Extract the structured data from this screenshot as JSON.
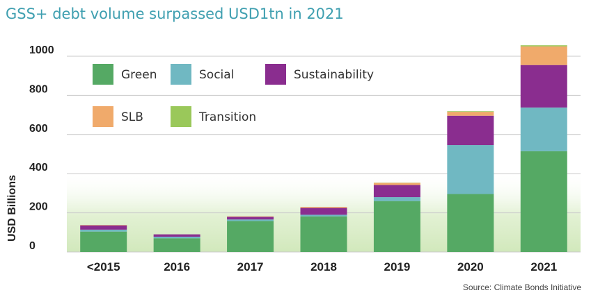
{
  "colors": {
    "title": "#3f9fb0",
    "Green": "#55a964",
    "Social": "#70b8c2",
    "Sustainability": "#8a2d8f",
    "SLB": "#f0aa6b",
    "Transition": "#9ac85a",
    "grid": "#c9c9c9",
    "band": "#d8ecc4"
  },
  "chart_data": {
    "type": "bar",
    "stacked": true,
    "title": "GSS+ debt volume surpassed USD1tn in 2021",
    "xlabel": "",
    "ylabel": "USD Billions",
    "ylim": [
      0,
      1000
    ],
    "yticks": [
      "1000",
      "800",
      "600",
      "400",
      "200",
      "0"
    ],
    "categories": [
      "<2015",
      "2016",
      "2017",
      "2018",
      "2019",
      "2020",
      "2021"
    ],
    "series": [
      {
        "name": "Green",
        "values": [
          104,
          70,
          158,
          182,
          260,
          296,
          515
        ]
      },
      {
        "name": "Social",
        "values": [
          10,
          8,
          8,
          8,
          20,
          250,
          223
        ]
      },
      {
        "name": "Sustainability",
        "values": [
          22,
          12,
          14,
          35,
          62,
          150,
          217
        ]
      },
      {
        "name": "SLB",
        "values": [
          2,
          0,
          2,
          5,
          11,
          20,
          95
        ]
      },
      {
        "name": "Transition",
        "values": [
          0,
          0,
          0,
          0,
          1,
          3,
          6
        ]
      }
    ],
    "legend": [
      "Green",
      "Social",
      "Sustainability",
      "SLB",
      "Transition"
    ],
    "legend_position": "top-left",
    "source": "Source: Climate Bonds Initiative"
  }
}
